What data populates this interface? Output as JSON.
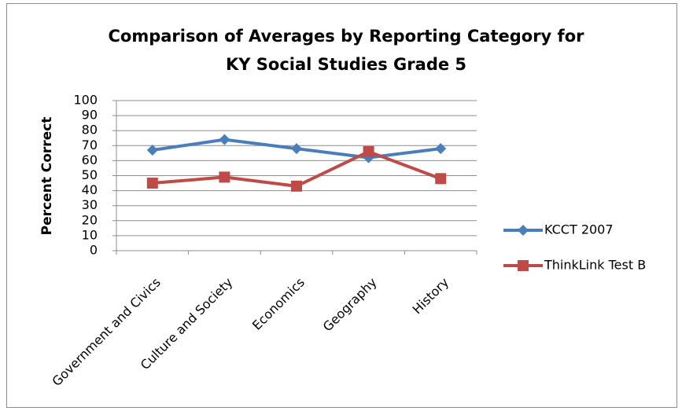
{
  "chart_data": {
    "type": "line",
    "title": [
      "Comparison of Averages by Reporting Category for",
      "KY Social Studies Grade 5"
    ],
    "y_label": "Percent Correct",
    "categories": [
      "Government and Civics",
      "Culture and Society",
      "Economics",
      "Geography",
      "History"
    ],
    "series": [
      {
        "name": "KCCT 2007",
        "color": "#4a7ebb",
        "marker": "diamond",
        "values": [
          67,
          74,
          68,
          62,
          68
        ]
      },
      {
        "name": "ThinkLink Test B",
        "color": "#be4b48",
        "marker": "square",
        "values": [
          45,
          49,
          43,
          66,
          48
        ]
      }
    ],
    "ylim": [
      0,
      100
    ],
    "yticks": [
      0,
      10,
      20,
      30,
      40,
      50,
      60,
      70,
      80,
      90,
      100
    ],
    "grid": true,
    "legend": "right"
  }
}
